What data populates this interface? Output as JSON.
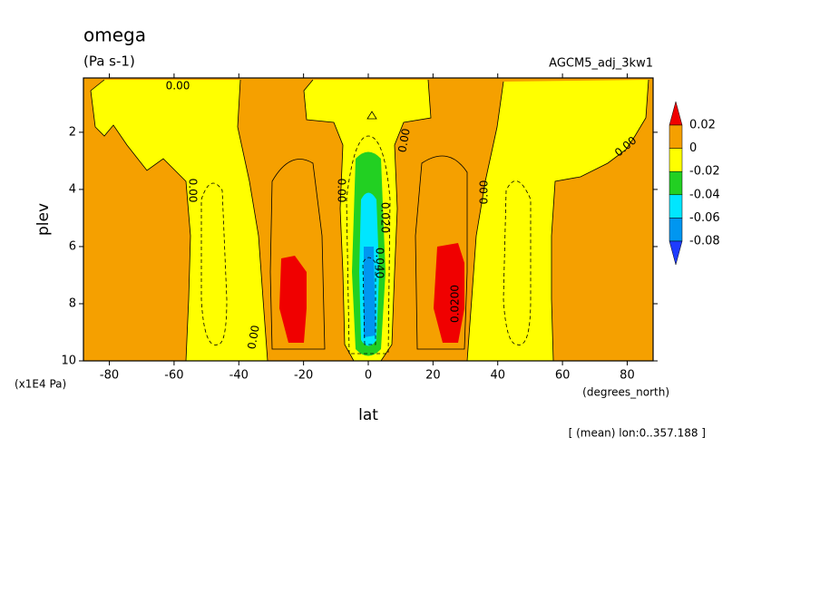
{
  "chart_data": {
    "type": "contour",
    "title": "omega",
    "subtitle": "(Pa s-1)",
    "run_label": "AGCM5_adj_3kw1",
    "x_label": "lat",
    "x_unit": "(degrees_north)",
    "y_label": "plev",
    "y_unit": "(x1E4 Pa)",
    "footer": "[ (mean) lon:0..357.188 ]",
    "xlim": [
      -88,
      88
    ],
    "xticks": [
      -80,
      -60,
      -40,
      -20,
      0,
      20,
      40,
      60,
      80
    ],
    "ylim": [
      10,
      0.1
    ],
    "yticks": [
      2,
      4,
      6,
      8,
      10
    ],
    "colorbar": {
      "levels": [
        0.02,
        0,
        -0.02,
        -0.04,
        -0.06,
        -0.08
      ],
      "colors": [
        "#f00000",
        "#f5a000",
        "#ffff00",
        "#22d022",
        "#00e6ff",
        "#0096f0",
        "#1e3cff"
      ]
    },
    "contour_labels": [
      "0.00",
      "0.00",
      "0.00",
      "0.00",
      "0.00",
      "0.00",
      "0.00",
      "0.020",
      "0.040",
      "0.0200"
    ]
  }
}
